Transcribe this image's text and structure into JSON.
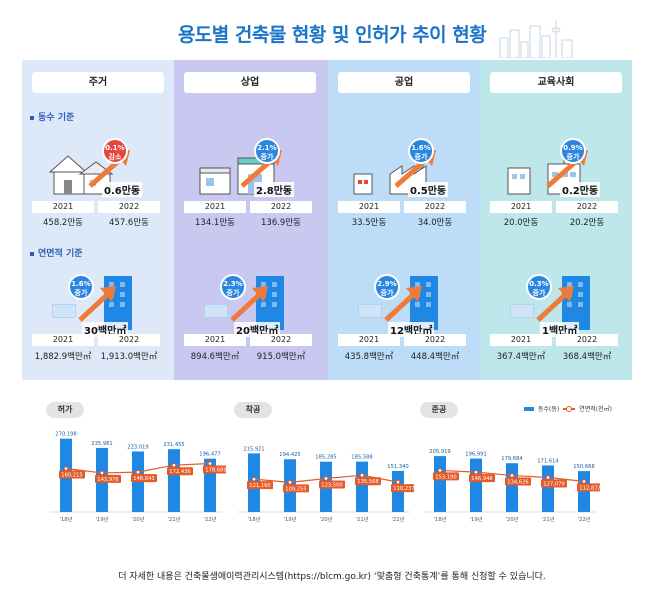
{
  "title": "용도별 건축물 현황 및 인허가 추이 현황",
  "panels": [
    {
      "name": "주거",
      "count_change": {
        "pct": "0.1%",
        "dir": "감소",
        "color": "#e8453c"
      },
      "count_diff": "0.6만동",
      "count_y1": "2021",
      "count_y2": "2022",
      "count_v1": "458.2만동",
      "count_v2": "457.6만동",
      "area_change": {
        "pct": "1.6%",
        "dir": "증가"
      },
      "area_diff": "30백만㎡",
      "area_y1": "2021",
      "area_y2": "2022",
      "area_v1": "1,882.9백만㎡",
      "area_v2": "1,913.0백만㎡"
    },
    {
      "name": "상업",
      "count_change": {
        "pct": "2.1%",
        "dir": "증가",
        "color": "#2b86e0"
      },
      "count_diff": "2.8만동",
      "count_y1": "2021",
      "count_y2": "2022",
      "count_v1": "134.1만동",
      "count_v2": "136.9만동",
      "area_change": {
        "pct": "2.3%",
        "dir": "증가"
      },
      "area_diff": "20백만㎡",
      "area_y1": "2021",
      "area_y2": "2022",
      "area_v1": "894.6백만㎡",
      "area_v2": "915.0백만㎡"
    },
    {
      "name": "공업",
      "count_change": {
        "pct": "1.6%",
        "dir": "증가",
        "color": "#2b86e0"
      },
      "count_diff": "0.5만동",
      "count_y1": "2021",
      "count_y2": "2022",
      "count_v1": "33.5만동",
      "count_v2": "34.0만동",
      "area_change": {
        "pct": "2.9%",
        "dir": "증가"
      },
      "area_diff": "12백만㎡",
      "area_y1": "2021",
      "area_y2": "2022",
      "area_v1": "435.8백만㎡",
      "area_v2": "448.4백만㎡"
    },
    {
      "name": "교육사회",
      "count_change": {
        "pct": "0.9%",
        "dir": "증가",
        "color": "#2b86e0"
      },
      "count_diff": "0.2만동",
      "count_y1": "2021",
      "count_y2": "2022",
      "count_v1": "20.0만동",
      "count_v2": "20.2만동",
      "area_change": {
        "pct": "0.3%",
        "dir": "증가"
      },
      "area_diff": "1백만㎡",
      "area_y1": "2021",
      "area_y2": "2022",
      "area_v1": "367.4백만㎡",
      "area_v2": "368.4백만㎡"
    }
  ],
  "section_count": "동수 기준",
  "section_area": "연면적 기준",
  "legend": {
    "bar": "동수(동)",
    "line": "연면적(천㎡)"
  },
  "colors": {
    "bar": "#1f88e5",
    "line": "#e45b2a",
    "title": "#1b74c9"
  },
  "footer": "더 자세한 내용은 건축물생애이력관리시스템(https://blcm.go.kr) ‘맞춤형 건축통계’를 통해 신청할 수 있습니다.",
  "chart_data": [
    {
      "type": "bar",
      "title": "허가",
      "categories": [
        "'18년",
        "'19년",
        "'20년",
        "'21년",
        "'22년"
      ],
      "series": [
        {
          "name": "동수(동)",
          "type": "bar",
          "values": [
            270198,
            235981,
            223019,
            231455,
            196477
          ]
        },
        {
          "name": "연면적(천㎡)",
          "type": "line",
          "values": [
            160215,
            143976,
            146843,
            172436,
            178689
          ]
        }
      ],
      "legend": "top-right"
    },
    {
      "type": "bar",
      "title": "착공",
      "categories": [
        "'18년",
        "'19년",
        "'20년",
        "'21년",
        "'22년"
      ],
      "series": [
        {
          "name": "동수(동)",
          "type": "bar",
          "values": [
            215921,
            194425,
            185285,
            185588,
            151340
          ]
        },
        {
          "name": "연면적(천㎡)",
          "type": "line",
          "values": [
            121160,
            109255,
            123500,
            135568,
            110237
          ]
        }
      ],
      "legend": "top-right"
    },
    {
      "type": "bar",
      "title": "준공",
      "categories": [
        "'18년",
        "'19년",
        "'20년",
        "'21년",
        "'22년"
      ],
      "series": [
        {
          "name": "동수(동)",
          "type": "bar",
          "values": [
            205919,
            196991,
            179684,
            171614,
            150668
          ]
        },
        {
          "name": "연면적(천㎡)",
          "type": "line",
          "values": [
            153190,
            146948,
            134626,
            127079,
            112872
          ]
        }
      ],
      "legend": "top-right"
    }
  ]
}
